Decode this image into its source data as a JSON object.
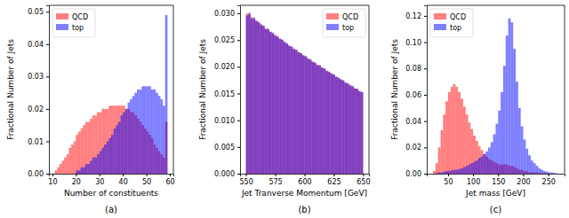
{
  "chart_data": [
    {
      "type": "histogram",
      "title": "(a)",
      "x_label": "Number of constituents",
      "y_label": "Fractional Number of Jets",
      "bins": [
        11,
        12,
        13,
        14,
        15,
        16,
        17,
        18,
        19,
        20,
        21,
        22,
        23,
        24,
        25,
        26,
        27,
        28,
        29,
        30,
        31,
        32,
        33,
        34,
        35,
        36,
        37,
        38,
        39,
        40,
        41,
        42,
        43,
        44,
        45,
        46,
        47,
        48,
        49,
        50,
        51,
        52,
        53,
        54,
        55,
        56,
        57,
        58,
        59
      ],
      "series": [
        {
          "name": "QCD",
          "color": "#ff0000",
          "values": [
            0.001,
            0.002,
            0.003,
            0.004,
            0.005,
            0.006,
            0.008,
            0.009,
            0.01,
            0.012,
            0.013,
            0.014,
            0.015,
            0.016,
            0.016,
            0.017,
            0.018,
            0.018,
            0.019,
            0.019,
            0.02,
            0.02,
            0.02,
            0.021,
            0.021,
            0.021,
            0.021,
            0.021,
            0.021,
            0.021,
            0.02,
            0.02,
            0.019,
            0.019,
            0.018,
            0.017,
            0.016,
            0.015,
            0.014,
            0.013,
            0.012,
            0.011,
            0.009,
            0.008,
            0.007,
            0.006,
            0.005,
            0.016
          ]
        },
        {
          "name": "top",
          "color": "#0000ff",
          "values": [
            0,
            0,
            0,
            0,
            0,
            0,
            0,
            0,
            0,
            0.001,
            0.001,
            0.002,
            0.002,
            0.003,
            0.003,
            0.004,
            0.005,
            0.005,
            0.006,
            0.007,
            0.008,
            0.009,
            0.01,
            0.011,
            0.012,
            0.014,
            0.015,
            0.016,
            0.018,
            0.019,
            0.02,
            0.022,
            0.023,
            0.024,
            0.025,
            0.026,
            0.026,
            0.027,
            0.027,
            0.027,
            0.027,
            0.026,
            0.026,
            0.025,
            0.024,
            0.023,
            0.021,
            0.049
          ]
        }
      ],
      "xlim": [
        8.5,
        61.5
      ],
      "ylim": [
        0,
        0.052
      ],
      "xticks": [
        10,
        20,
        30,
        40,
        50,
        60
      ],
      "yticks": [
        {
          "value": 0,
          "label": "0.00"
        },
        {
          "value": 0.01,
          "label": "0.01"
        },
        {
          "value": 0.02,
          "label": "0.02"
        },
        {
          "value": 0.03,
          "label": "0.03"
        },
        {
          "value": 0.04,
          "label": "0.04"
        },
        {
          "value": 0.05,
          "label": "0.05"
        }
      ],
      "legend": "upper left"
    },
    {
      "type": "histogram",
      "title": "(b)",
      "x_label": "Jet Tranverse Momentum [GeV]",
      "y_label": "Fractional Number of Jets",
      "bins": [
        550,
        552,
        554,
        556,
        558,
        560,
        562,
        564,
        566,
        568,
        570,
        572,
        574,
        576,
        578,
        580,
        582,
        584,
        586,
        588,
        590,
        592,
        594,
        596,
        598,
        600,
        602,
        604,
        606,
        608,
        610,
        612,
        614,
        616,
        618,
        620,
        622,
        624,
        626,
        628,
        630,
        632,
        634,
        636,
        638,
        640,
        642,
        644,
        646,
        648,
        650
      ],
      "series": [
        {
          "name": "QCD",
          "color": "#ff0000",
          "values": [
            0.03,
            0.0298,
            0.0293,
            0.029,
            0.0287,
            0.0282,
            0.028,
            0.0276,
            0.0272,
            0.027,
            0.0266,
            0.0262,
            0.026,
            0.0256,
            0.0253,
            0.025,
            0.0247,
            0.0243,
            0.024,
            0.0237,
            0.0234,
            0.0231,
            0.0228,
            0.0225,
            0.0222,
            0.0219,
            0.0216,
            0.0213,
            0.021,
            0.0207,
            0.0204,
            0.0202,
            0.0199,
            0.0196,
            0.0193,
            0.019,
            0.0188,
            0.0185,
            0.0182,
            0.0179,
            0.0177,
            0.0174,
            0.0171,
            0.0168,
            0.0166,
            0.0163,
            0.016,
            0.0158,
            0.0155,
            0.0152
          ]
        },
        {
          "name": "top",
          "color": "#0000ff",
          "values": [
            0.0296,
            0.0301,
            0.029,
            0.0292,
            0.0285,
            0.0284,
            0.0278,
            0.0277,
            0.027,
            0.0271,
            0.0265,
            0.0264,
            0.0258,
            0.0257,
            0.0252,
            0.0251,
            0.0246,
            0.0244,
            0.0239,
            0.0238,
            0.0233,
            0.0232,
            0.0227,
            0.0226,
            0.0221,
            0.022,
            0.0215,
            0.0214,
            0.0209,
            0.0208,
            0.0203,
            0.0203,
            0.0198,
            0.0197,
            0.0192,
            0.0191,
            0.0187,
            0.0186,
            0.0181,
            0.018,
            0.0176,
            0.0175,
            0.017,
            0.0169,
            0.0165,
            0.0164,
            0.0159,
            0.0159,
            0.0154,
            0.0153
          ]
        }
      ],
      "xlim": [
        545,
        655
      ],
      "ylim": [
        0,
        0.0315
      ],
      "xticks": [
        550,
        575,
        600,
        625,
        650
      ],
      "yticks": [
        {
          "value": 0,
          "label": "0.000"
        },
        {
          "value": 0.005,
          "label": "0.005"
        },
        {
          "value": 0.01,
          "label": "0.010"
        },
        {
          "value": 0.015,
          "label": "0.015"
        },
        {
          "value": 0.02,
          "label": "0.020"
        },
        {
          "value": 0.025,
          "label": "0.025"
        },
        {
          "value": 0.03,
          "label": "0.030"
        }
      ],
      "legend": "upper right"
    },
    {
      "type": "histogram",
      "title": "(c)",
      "x_label": "Jet mass [GeV]",
      "y_label": "Fractional Number of Jets",
      "bins": [
        20,
        25,
        30,
        35,
        40,
        45,
        50,
        55,
        60,
        65,
        70,
        75,
        80,
        85,
        90,
        95,
        100,
        105,
        110,
        115,
        120,
        125,
        130,
        135,
        140,
        145,
        150,
        155,
        160,
        165,
        170,
        175,
        180,
        185,
        190,
        195,
        200,
        205,
        210,
        215,
        220,
        225,
        230,
        235,
        240,
        245,
        250,
        255,
        260,
        265,
        270
      ],
      "series": [
        {
          "name": "QCD",
          "color": "#ff0000",
          "values": [
            0.002,
            0.008,
            0.02,
            0.033,
            0.045,
            0.055,
            0.062,
            0.066,
            0.068,
            0.066,
            0.062,
            0.057,
            0.051,
            0.045,
            0.039,
            0.034,
            0.029,
            0.025,
            0.021,
            0.018,
            0.015,
            0.013,
            0.011,
            0.01,
            0.009,
            0.008,
            0.007,
            0.007,
            0.007,
            0.007,
            0.006,
            0.006,
            0.005,
            0.004,
            0.003,
            0.003,
            0.002,
            0.002,
            0.001,
            0.001,
            0.001,
            0.001,
            0.0005,
            0.0005,
            0.0003,
            0.0003,
            0.0002,
            0.0002,
            0.0001,
            0.0001
          ]
        },
        {
          "name": "top",
          "color": "#0000ff",
          "values": [
            0,
            0.0005,
            0.001,
            0.001,
            0.0015,
            0.002,
            0.002,
            0.0025,
            0.003,
            0.003,
            0.0035,
            0.004,
            0.005,
            0.006,
            0.007,
            0.008,
            0.009,
            0.01,
            0.012,
            0.013,
            0.015,
            0.017,
            0.02,
            0.024,
            0.03,
            0.038,
            0.048,
            0.062,
            0.082,
            0.105,
            0.118,
            0.115,
            0.095,
            0.07,
            0.05,
            0.036,
            0.026,
            0.019,
            0.014,
            0.01,
            0.008,
            0.006,
            0.004,
            0.003,
            0.002,
            0.0015,
            0.001,
            0.0008,
            0.0005,
            0.0003
          ]
        }
      ],
      "xlim": [
        7.5,
        282.5
      ],
      "ylim": [
        0,
        0.128
      ],
      "xticks": [
        50,
        100,
        150,
        200,
        250
      ],
      "yticks": [
        {
          "value": 0,
          "label": "0.00"
        },
        {
          "value": 0.02,
          "label": "0.02"
        },
        {
          "value": 0.04,
          "label": "0.04"
        },
        {
          "value": 0.06,
          "label": "0.06"
        },
        {
          "value": 0.08,
          "label": "0.08"
        },
        {
          "value": 0.1,
          "label": "0.10"
        },
        {
          "value": 0.12,
          "label": "0.12"
        }
      ],
      "legend": "upper left"
    }
  ]
}
